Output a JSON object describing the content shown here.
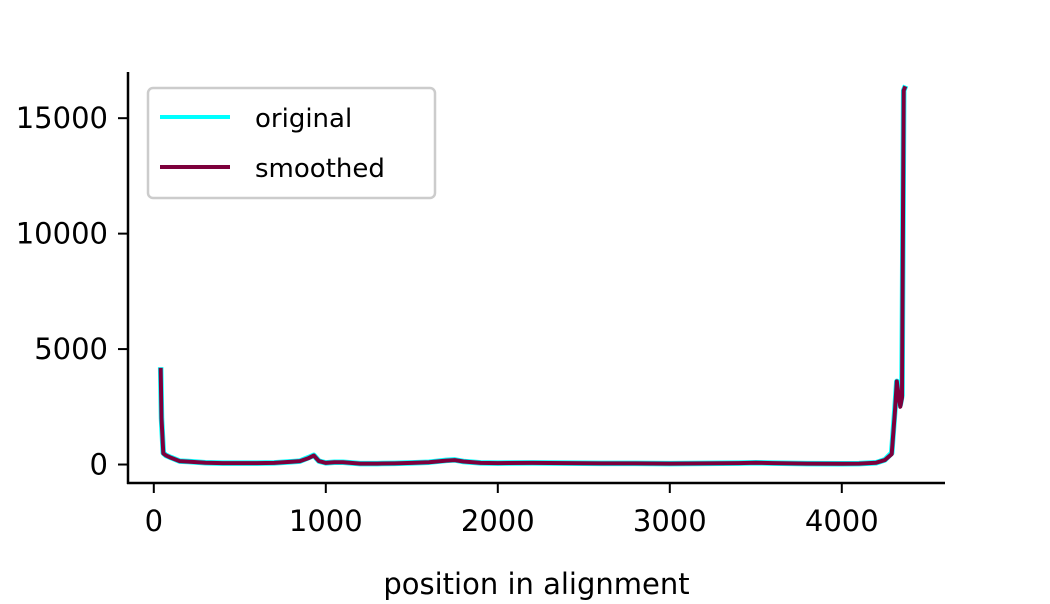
{
  "chart_data": {
    "type": "line",
    "title": "",
    "xlabel": "position in alignment",
    "ylabel": "",
    "xlim": [
      -150,
      4600
    ],
    "ylim": [
      -800,
      17000
    ],
    "xticks": [
      0,
      1000,
      2000,
      3000,
      4000
    ],
    "yticks": [
      0,
      5000,
      10000,
      15000
    ],
    "xtick_labels": [
      "0",
      "1000",
      "2000",
      "3000",
      "4000"
    ],
    "ytick_labels": [
      "0",
      "5000",
      "10000",
      "15000"
    ],
    "grid": false,
    "legend_position": "top-left",
    "series": [
      {
        "name": "original",
        "color": "#00ffff",
        "x": [
          40,
          45,
          55,
          70,
          100,
          150,
          200,
          300,
          400,
          500,
          600,
          700,
          800,
          850,
          900,
          930,
          960,
          1000,
          1050,
          1100,
          1200,
          1300,
          1400,
          1500,
          1600,
          1700,
          1750,
          1800,
          1900,
          2000,
          2200,
          2400,
          2600,
          2800,
          3000,
          3200,
          3400,
          3500,
          3600,
          3800,
          4000,
          4100,
          4200,
          4250,
          4290,
          4310,
          4320,
          4330,
          4340,
          4350,
          4360,
          4365
        ],
        "y": [
          4100,
          2000,
          500,
          400,
          300,
          150,
          130,
          80,
          60,
          60,
          60,
          70,
          120,
          150,
          300,
          400,
          150,
          70,
          100,
          100,
          40,
          40,
          50,
          70,
          100,
          180,
          200,
          130,
          70,
          60,
          70,
          60,
          50,
          50,
          40,
          50,
          60,
          80,
          60,
          40,
          30,
          40,
          80,
          200,
          500,
          2500,
          3600,
          3000,
          2600,
          3000,
          16200,
          16300
        ]
      },
      {
        "name": "smoothed",
        "color": "#7d003c",
        "x": [
          40,
          45,
          55,
          70,
          100,
          150,
          200,
          300,
          400,
          500,
          600,
          700,
          800,
          850,
          900,
          930,
          960,
          1000,
          1050,
          1100,
          1200,
          1300,
          1400,
          1500,
          1600,
          1700,
          1750,
          1800,
          1900,
          2000,
          2200,
          2400,
          2600,
          2800,
          3000,
          3200,
          3400,
          3500,
          3600,
          3800,
          4000,
          4100,
          4200,
          4250,
          4290,
          4310,
          4320,
          4330,
          4340,
          4350,
          4360,
          4365
        ],
        "y": [
          4100,
          2000,
          480,
          400,
          290,
          150,
          125,
          80,
          60,
          60,
          60,
          70,
          120,
          150,
          280,
          390,
          150,
          70,
          100,
          95,
          40,
          40,
          50,
          70,
          100,
          170,
          190,
          130,
          70,
          60,
          70,
          60,
          50,
          50,
          40,
          50,
          60,
          80,
          60,
          40,
          30,
          40,
          80,
          190,
          450,
          2400,
          3600,
          3000,
          2500,
          2900,
          16200,
          16300
        ]
      }
    ]
  }
}
